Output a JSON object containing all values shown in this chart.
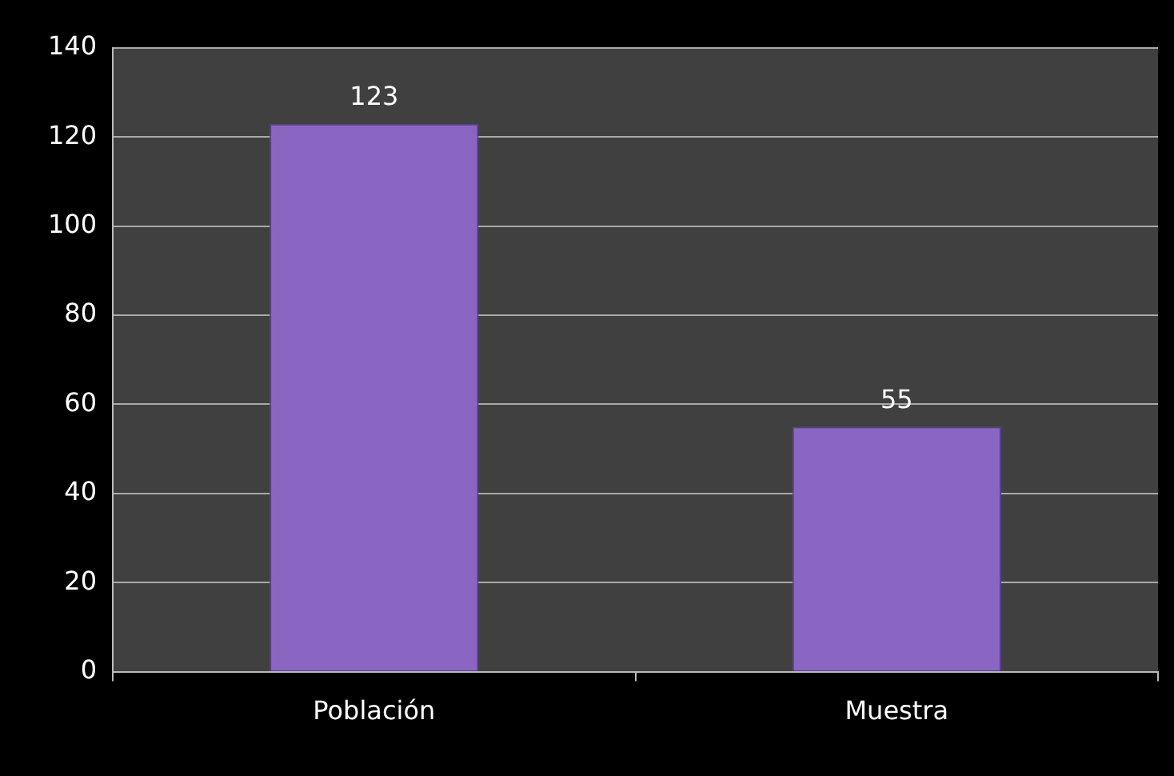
{
  "chart_data": {
    "type": "bar",
    "categories": [
      "Población",
      "Muestra"
    ],
    "values": [
      123,
      55
    ],
    "color": "#8a66c2",
    "ylim": [
      0,
      140
    ],
    "yticks": [
      0,
      20,
      40,
      60,
      80,
      100,
      120,
      140
    ],
    "grid": "y",
    "legend": false,
    "data_labels": true
  }
}
